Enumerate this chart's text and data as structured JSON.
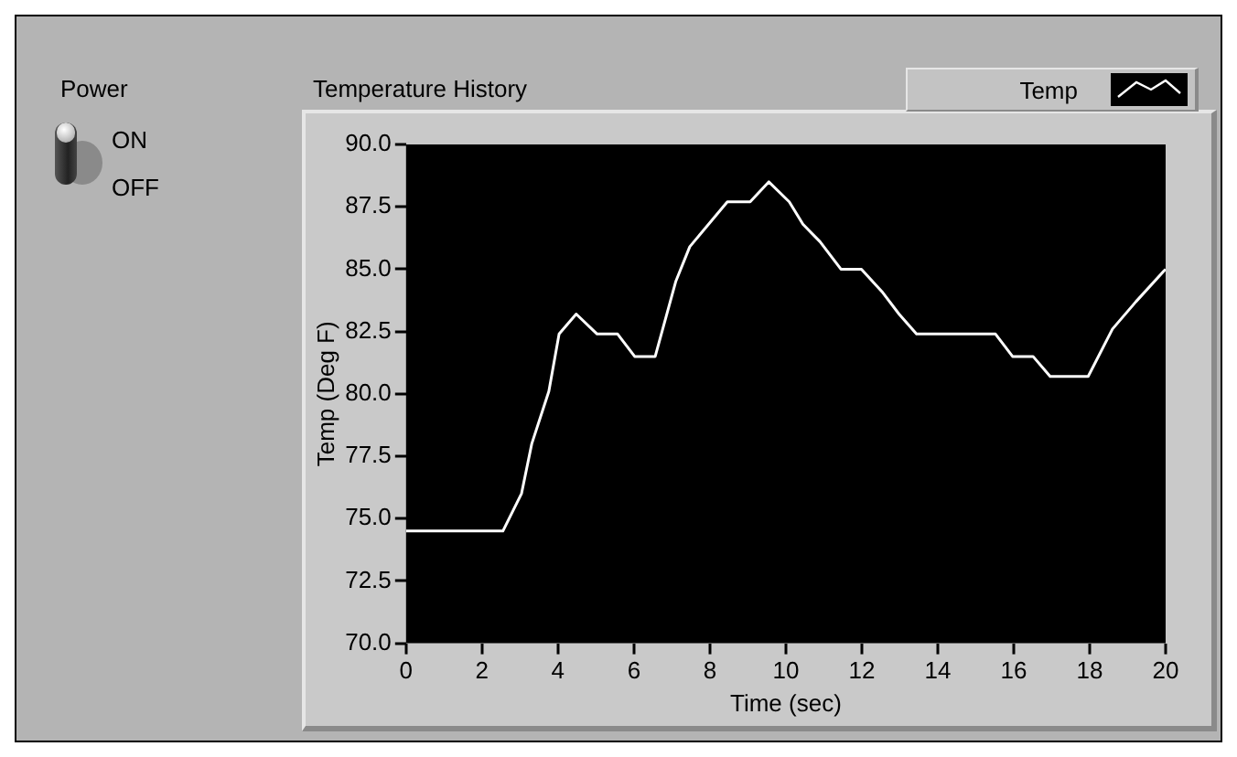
{
  "chart_data": {
    "type": "line",
    "title": "Temperature History",
    "xlabel": "Time (sec)",
    "ylabel": "Temp (Deg F)",
    "annotations": [
      "Power",
      "ON",
      "OFF"
    ],
    "x": [
      0,
      2.55,
      3.04,
      3.31,
      3.76,
      4.03,
      4.48,
      5.03,
      5.57,
      6.02,
      6.56,
      7.1,
      7.47,
      8.46,
      9.06,
      9.55,
      10.09,
      10.45,
      10.9,
      11.45,
      11.99,
      12.53,
      12.98,
      13.44,
      15.52,
      15.97,
      16.51,
      16.96,
      17.96,
      18.6,
      19.22,
      20
    ],
    "series": [
      {
        "name": "Temp",
        "color": "#ffffff",
        "values": [
          74.5,
          74.5,
          76.0,
          78.0,
          80.1,
          82.4,
          83.2,
          82.4,
          82.4,
          81.5,
          81.5,
          84.5,
          85.9,
          87.7,
          87.7,
          88.5,
          87.7,
          86.8,
          86.1,
          85.0,
          85.0,
          84.1,
          83.2,
          82.4,
          82.4,
          81.5,
          81.5,
          80.7,
          80.7,
          82.6,
          83.7,
          85.0
        ]
      }
    ],
    "xlim": [
      0,
      20
    ],
    "xticks": [
      0,
      2,
      4,
      6,
      8,
      10,
      12,
      14,
      16,
      18,
      20
    ],
    "ylim": [
      70,
      90
    ],
    "yticks": [
      {
        "value": 70,
        "label": "70.0"
      },
      {
        "value": 72.5,
        "label": "72.5"
      },
      {
        "value": 75,
        "label": "75.0"
      },
      {
        "value": 77.5,
        "label": "77.5"
      },
      {
        "value": 80,
        "label": "80.0"
      },
      {
        "value": 82.5,
        "label": "82.5"
      },
      {
        "value": 85,
        "label": "85.0"
      },
      {
        "value": 87.5,
        "label": "87.5"
      },
      {
        "value": 90,
        "label": "90.0"
      }
    ],
    "grid": false,
    "legend": "top right",
    "marker": "none",
    "line_style": "solid"
  }
}
